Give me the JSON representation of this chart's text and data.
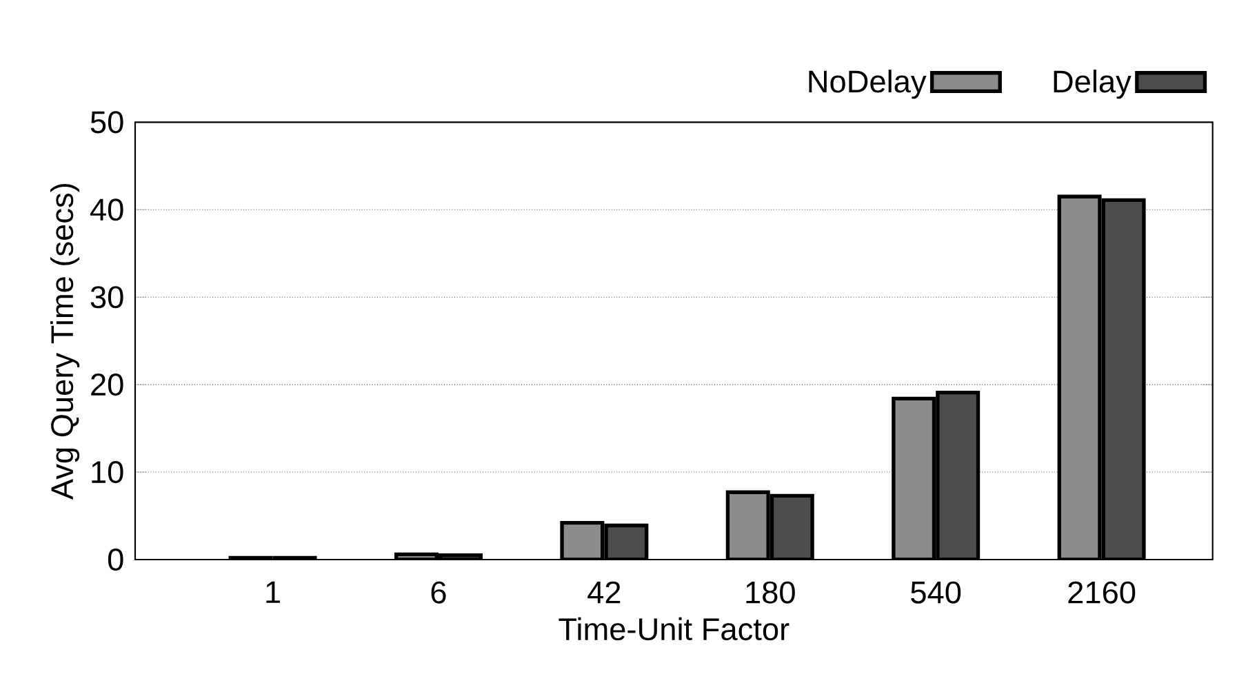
{
  "chart_data": {
    "type": "bar",
    "xlabel": "Time-Unit Factor",
    "ylabel": "Avg Query Time (secs)",
    "categories": [
      "1",
      "6",
      "42",
      "180",
      "540",
      "2160"
    ],
    "series": [
      {
        "name": "NoDelay",
        "color": "#8c8c8c",
        "values": [
          0.2,
          0.6,
          4.2,
          7.7,
          18.4,
          41.5
        ]
      },
      {
        "name": "Delay",
        "color": "#4d4d4d",
        "values": [
          0.2,
          0.5,
          3.9,
          7.3,
          19.1,
          41.1
        ]
      }
    ],
    "ylim": [
      0,
      50
    ],
    "yticks": [
      0,
      10,
      20,
      30,
      40,
      50
    ],
    "grid": "y",
    "legend": "top right"
  }
}
